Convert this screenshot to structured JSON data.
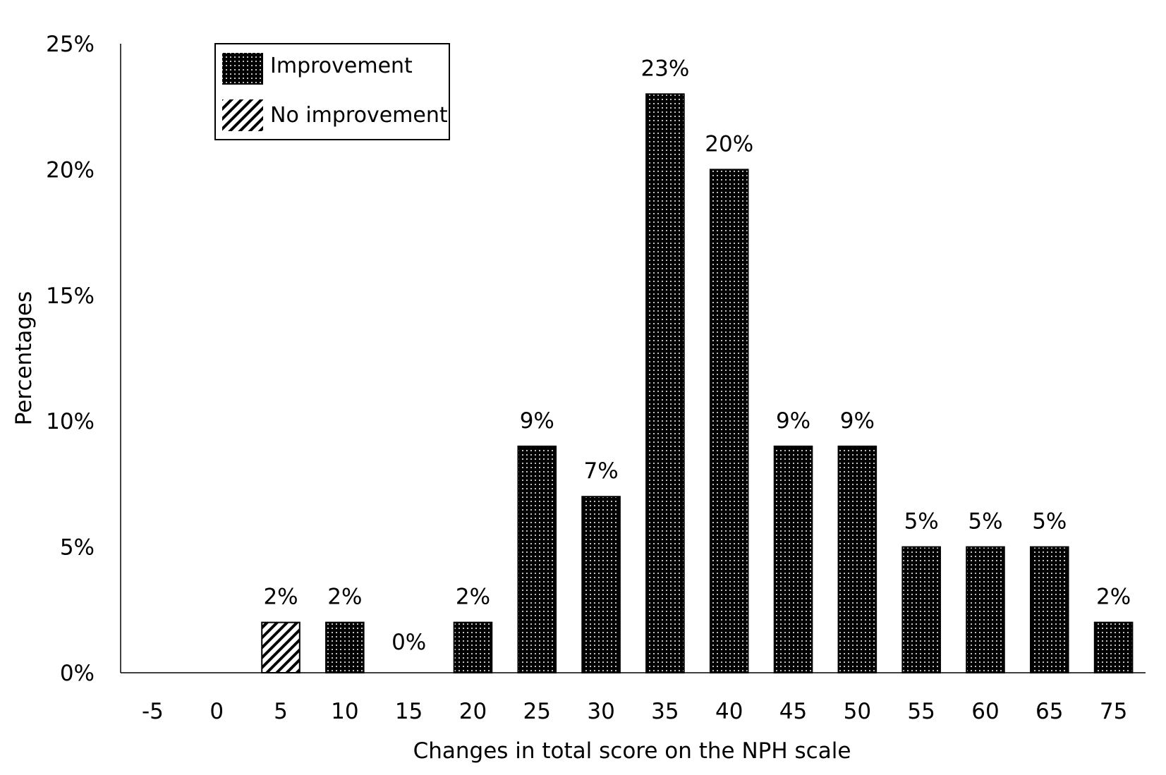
{
  "chart_data": {
    "type": "bar",
    "xlabel": "Changes in total score on the NPH scale",
    "ylabel": "Percentages",
    "ylim": [
      0,
      25
    ],
    "yticks": [
      "0%",
      "5%",
      "10%",
      "15%",
      "20%",
      "25%"
    ],
    "categories": [
      "-5",
      "0",
      "5",
      "10",
      "15",
      "20",
      "25",
      "30",
      "35",
      "40",
      "45",
      "50",
      "55",
      "60",
      "65",
      "75"
    ],
    "values": [
      null,
      null,
      2,
      2,
      0,
      2,
      9,
      7,
      23,
      20,
      9,
      9,
      5,
      5,
      5,
      2
    ],
    "data_labels": [
      "",
      "",
      "2%",
      "2%",
      "0%",
      "2%",
      "9%",
      "7%",
      "23%",
      "20%",
      "9%",
      "9%",
      "5%",
      "5%",
      "5%",
      "2%"
    ],
    "groups": [
      "none",
      "none",
      "no-improvement",
      "improvement",
      "improvement",
      "improvement",
      "improvement",
      "improvement",
      "improvement",
      "improvement",
      "improvement",
      "improvement",
      "improvement",
      "improvement",
      "improvement",
      "improvement"
    ],
    "legend": {
      "position": "top-left",
      "entries": [
        {
          "key": "improvement",
          "label": "Improvement",
          "pattern": "dotted-black"
        },
        {
          "key": "no-improvement",
          "label": "No improvement",
          "pattern": "diagonal-hatch"
        }
      ]
    },
    "grid": false,
    "colors": {
      "bar": "#000000",
      "dot": "#ffffff",
      "axis": "#000000"
    }
  }
}
